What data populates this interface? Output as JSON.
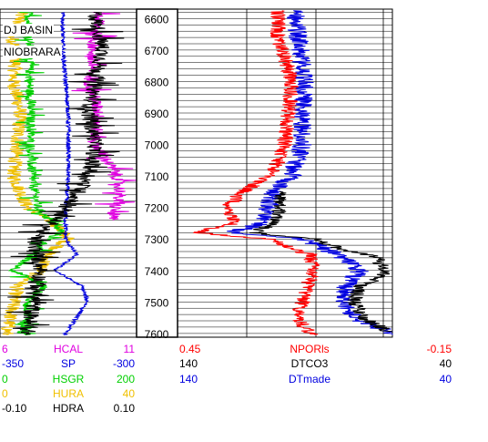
{
  "chart_data": {
    "type": "line",
    "depth_axis": {
      "ylim": [
        6570,
        7612
      ],
      "tick_labels": [
        "6600",
        "6700",
        "6800",
        "6900",
        "7000",
        "7100",
        "7200",
        "7300",
        "7400",
        "7500",
        "7600"
      ],
      "grid": true
    },
    "annotations": [
      "DJ BASIN",
      "NIOBRARA"
    ],
    "tracks": [
      {
        "curves": [
          {
            "name": "HCAL",
            "min": "6",
            "max": "11",
            "color": "#e000e0"
          },
          {
            "name": "SP",
            "min": "-350",
            "max": "-300",
            "color": "#0000e0"
          },
          {
            "name": "HSGR",
            "min": "0",
            "max": "200",
            "color": "#00d000"
          },
          {
            "name": "HURA",
            "min": "0",
            "max": "40",
            "color": "#f0c000"
          },
          {
            "name": "HDRA",
            "min": "-0.10",
            "max": "0.10",
            "color": "#000000"
          }
        ]
      },
      {
        "curves": [
          {
            "name": "NPORls",
            "min": "0.45",
            "max": "-0.15",
            "color": "#ff0000"
          },
          {
            "name": "DTCO3",
            "min": "140",
            "max": "40",
            "color": "#000000"
          },
          {
            "name": "DTmade",
            "min": "140",
            "max": "40",
            "color": "#0000e0"
          }
        ]
      }
    ],
    "profiles": {
      "NPORls": {
        "depth": [
          6600,
          6650,
          6700,
          6800,
          6900,
          7000,
          7100,
          7150,
          7200,
          7250,
          7280,
          7300,
          7350,
          7400,
          7450,
          7500,
          7550,
          7600
        ],
        "value": [
          0.17,
          0.17,
          0.16,
          0.13,
          0.14,
          0.15,
          0.19,
          0.27,
          0.31,
          0.29,
          0.4,
          0.2,
          0.08,
          0.07,
          0.09,
          0.1,
          0.12,
          0.08
        ]
      },
      "DTCO3": {
        "depth": [
          7150,
          7200,
          7250,
          7280,
          7300,
          7330,
          7360,
          7380,
          7400,
          7430,
          7450,
          7500,
          7550,
          7600
        ],
        "value": [
          93,
          92,
          94,
          105,
          76,
          65,
          45,
          46,
          42,
          48,
          55,
          58,
          54,
          40
        ]
      },
      "DTmade": {
        "depth": [
          6600,
          6650,
          6700,
          6800,
          6900,
          7000,
          7100,
          7150,
          7200,
          7250,
          7280,
          7300,
          7350,
          7400,
          7450,
          7500,
          7550,
          7600
        ],
        "value": [
          85,
          84,
          83,
          81,
          82,
          82,
          87,
          95,
          98,
          100,
          115,
          82,
          65,
          55,
          62,
          62,
          58,
          40
        ]
      },
      "HCAL": {
        "depth": [
          6600,
          6650,
          6700,
          6800,
          6900,
          7000,
          7100,
          7150,
          7200,
          7230
        ],
        "value": [
          9.6,
          9.5,
          9.4,
          9.3,
          9.6,
          9.5,
          10.3,
          10.4,
          10.2,
          10.1
        ]
      },
      "SP": {
        "depth": [
          6600,
          6700,
          6800,
          6900,
          7000,
          7100,
          7200,
          7300,
          7350,
          7400,
          7450,
          7500,
          7550,
          7600
        ],
        "value": [
          -327,
          -327,
          -326,
          -325,
          -325,
          -325,
          -326,
          -326,
          -322,
          -330,
          -320,
          -318,
          -322,
          -326
        ]
      },
      "HSGR": {
        "depth": [
          6600,
          6650,
          6700,
          6800,
          6900,
          7000,
          7100,
          7200,
          7280,
          7300,
          7350,
          7400,
          7450,
          7500,
          7550,
          7600
        ],
        "value": [
          42,
          41,
          44,
          43,
          45,
          44,
          47,
          55,
          90,
          70,
          48,
          20,
          65,
          40,
          42,
          30
        ]
      },
      "HURA": {
        "depth": [
          6600,
          6650,
          6700,
          6800,
          6900,
          7000,
          7100,
          7200,
          7250,
          7300,
          7350,
          7400,
          7450,
          7500,
          7550,
          7600
        ],
        "value": [
          6,
          3,
          5,
          4,
          6,
          5,
          4,
          8,
          16,
          20,
          14,
          12,
          5,
          4,
          3,
          2
        ]
      },
      "HDRA": {
        "depth": [
          6600,
          6700,
          6800,
          6900,
          7000,
          7100,
          7200,
          7300,
          7400,
          7500,
          7600
        ],
        "value": [
          0.04,
          0.05,
          0.04,
          0.03,
          0.04,
          0.03,
          0.0,
          -0.05,
          -0.04,
          -0.05,
          -0.06
        ]
      }
    }
  }
}
